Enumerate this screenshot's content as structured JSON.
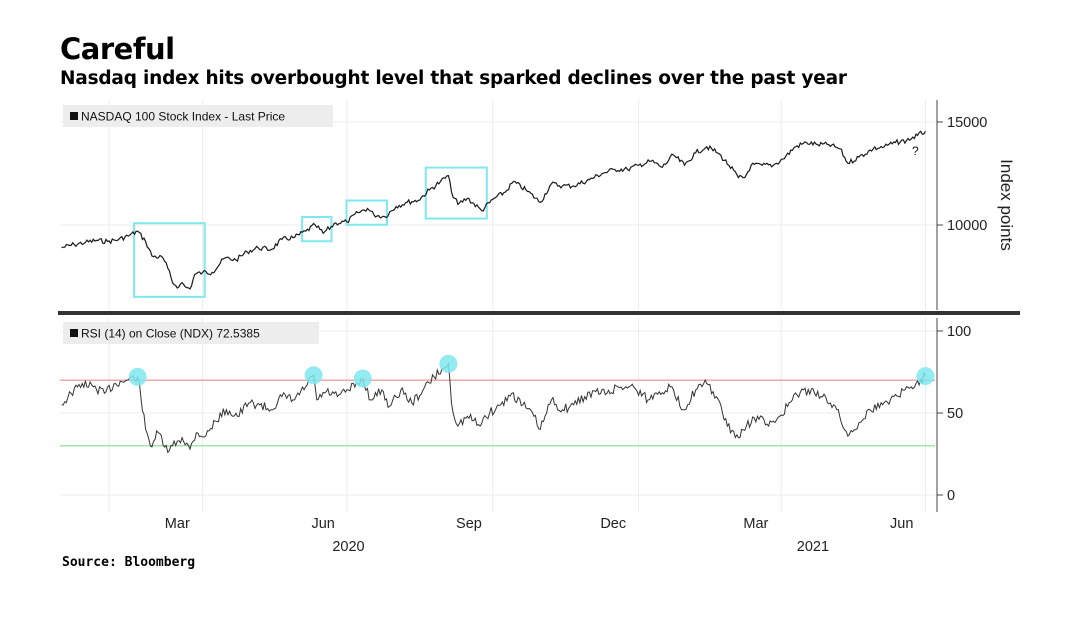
{
  "header": {
    "title": "Careful",
    "subtitle": "Nasdaq index hits overbought level that sparked declines over the past year"
  },
  "footer": {
    "source": "Source: Bloomberg"
  },
  "colors": {
    "background": "#ffffff",
    "price_line": "#1a1a1a",
    "rsi_line": "#333333",
    "overbought_line": "#f2a7a7",
    "oversold_line": "#a6e3a6",
    "highlight": "#7fe8ee",
    "divider": "#333333"
  },
  "chart_data": [
    {
      "type": "line",
      "panel": "price",
      "legend": "NASDAQ 100 Stock Index - Last Price",
      "ylabel": "Index points",
      "ylim": [
        7000,
        16000
      ],
      "yticks": [
        10000,
        15000
      ],
      "x_month_ticks": [
        "Mar",
        "Jun",
        "Sep",
        "Dec",
        "Mar",
        "Jun"
      ],
      "x_year_labels": [
        "2020",
        "2021"
      ],
      "annotation": "?",
      "series": [
        {
          "points": [
            [
              "2020-01-02",
              8900
            ],
            [
              "2020-01-10",
              9050
            ],
            [
              "2020-01-17",
              9150
            ],
            [
              "2020-01-24",
              9250
            ],
            [
              "2020-01-31",
              9200
            ],
            [
              "2020-02-07",
              9300
            ],
            [
              "2020-02-14",
              9500
            ],
            [
              "2020-02-19",
              9700
            ],
            [
              "2020-02-24",
              9200
            ],
            [
              "2020-02-28",
              8500
            ],
            [
              "2020-03-06",
              8400
            ],
            [
              "2020-03-09",
              7900
            ],
            [
              "2020-03-12",
              7200
            ],
            [
              "2020-03-16",
              7000
            ],
            [
              "2020-03-18",
              7200
            ],
            [
              "2020-03-20",
              7000
            ],
            [
              "2020-03-23",
              6900
            ],
            [
              "2020-03-26",
              7600
            ],
            [
              "2020-03-31",
              7700
            ],
            [
              "2020-04-06",
              7700
            ],
            [
              "2020-04-14",
              8400
            ],
            [
              "2020-04-21",
              8300
            ],
            [
              "2020-04-28",
              8700
            ],
            [
              "2020-05-05",
              8900
            ],
            [
              "2020-05-13",
              8800
            ],
            [
              "2020-05-20",
              9300
            ],
            [
              "2020-05-28",
              9400
            ],
            [
              "2020-06-04",
              9700
            ],
            [
              "2020-06-10",
              10000
            ],
            [
              "2020-06-15",
              9600
            ],
            [
              "2020-06-23",
              10100
            ],
            [
              "2020-06-30",
              10150
            ],
            [
              "2020-07-07",
              10600
            ],
            [
              "2020-07-13",
              10800
            ],
            [
              "2020-07-17",
              10500
            ],
            [
              "2020-07-24",
              10400
            ],
            [
              "2020-07-31",
              10900
            ],
            [
              "2020-08-07",
              11100
            ],
            [
              "2020-08-14",
              11200
            ],
            [
              "2020-08-21",
              11700
            ],
            [
              "2020-08-28",
              12100
            ],
            [
              "2020-09-02",
              12400
            ],
            [
              "2020-09-04",
              11600
            ],
            [
              "2020-09-08",
              11000
            ],
            [
              "2020-09-14",
              11300
            ],
            [
              "2020-09-23",
              10700
            ],
            [
              "2020-10-01",
              11300
            ],
            [
              "2020-10-08",
              11600
            ],
            [
              "2020-10-13",
              12100
            ],
            [
              "2020-10-21",
              11700
            ],
            [
              "2020-10-30",
              11100
            ],
            [
              "2020-11-06",
              12000
            ],
            [
              "2020-11-13",
              11900
            ],
            [
              "2020-11-20",
              11900
            ],
            [
              "2020-11-30",
              12200
            ],
            [
              "2020-12-08",
              12500
            ],
            [
              "2020-12-16",
              12700
            ],
            [
              "2020-12-24",
              12700
            ],
            [
              "2020-12-31",
              12900
            ],
            [
              "2021-01-08",
              13100
            ],
            [
              "2021-01-15",
              12800
            ],
            [
              "2021-01-22",
              13400
            ],
            [
              "2021-01-29",
              12900
            ],
            [
              "2021-02-05",
              13500
            ],
            [
              "2021-02-12",
              13800
            ],
            [
              "2021-02-19",
              13500
            ],
            [
              "2021-02-26",
              12900
            ],
            [
              "2021-03-04",
              12300
            ],
            [
              "2021-03-08",
              12300
            ],
            [
              "2021-03-12",
              12900
            ],
            [
              "2021-03-19",
              12900
            ],
            [
              "2021-03-26",
              12900
            ],
            [
              "2021-04-01",
              13200
            ],
            [
              "2021-04-09",
              13800
            ],
            [
              "2021-04-16",
              14000
            ],
            [
              "2021-04-23",
              13900
            ],
            [
              "2021-04-30",
              13900
            ],
            [
              "2021-05-07",
              13700
            ],
            [
              "2021-05-12",
              13000
            ],
            [
              "2021-05-19",
              13300
            ],
            [
              "2021-05-28",
              13700
            ],
            [
              "2021-06-04",
              13800
            ],
            [
              "2021-06-11",
              14000
            ],
            [
              "2021-06-18",
              14100
            ],
            [
              "2021-06-25",
              14350
            ],
            [
              "2021-06-30",
              14550
            ]
          ]
        }
      ],
      "highlight_windows": [
        [
          "2020-02-18",
          "2020-03-31"
        ],
        [
          "2020-06-03",
          "2020-06-19"
        ],
        [
          "2020-07-01",
          "2020-07-24"
        ],
        [
          "2020-08-20",
          "2020-09-25"
        ]
      ]
    },
    {
      "type": "line",
      "panel": "rsi",
      "legend": "RSI (14)  on Close (NDX) 72.5385",
      "ylim": [
        0,
        100
      ],
      "yticks": [
        0,
        50,
        100
      ],
      "reference_lines": [
        {
          "value": 70,
          "color": "#f2a7a7"
        },
        {
          "value": 30,
          "color": "#a6e3a6"
        }
      ],
      "series": [
        {
          "points": [
            [
              "2020-01-02",
              55
            ],
            [
              "2020-01-08",
              62
            ],
            [
              "2020-01-15",
              68
            ],
            [
              "2020-01-22",
              66
            ],
            [
              "2020-01-29",
              62
            ],
            [
              "2020-02-05",
              68
            ],
            [
              "2020-02-12",
              70
            ],
            [
              "2020-02-19",
              72
            ],
            [
              "2020-02-21",
              60
            ],
            [
              "2020-02-24",
              40
            ],
            [
              "2020-02-27",
              30
            ],
            [
              "2020-03-03",
              38
            ],
            [
              "2020-03-09",
              26
            ],
            [
              "2020-03-12",
              30
            ],
            [
              "2020-03-18",
              35
            ],
            [
              "2020-03-23",
              28
            ],
            [
              "2020-03-27",
              38
            ],
            [
              "2020-04-02",
              36
            ],
            [
              "2020-04-08",
              45
            ],
            [
              "2020-04-15",
              52
            ],
            [
              "2020-04-22",
              48
            ],
            [
              "2020-04-29",
              56
            ],
            [
              "2020-05-06",
              55
            ],
            [
              "2020-05-13",
              52
            ],
            [
              "2020-05-20",
              60
            ],
            [
              "2020-05-28",
              58
            ],
            [
              "2020-06-04",
              66
            ],
            [
              "2020-06-09",
              73
            ],
            [
              "2020-06-11",
              58
            ],
            [
              "2020-06-17",
              63
            ],
            [
              "2020-06-24",
              60
            ],
            [
              "2020-07-01",
              64
            ],
            [
              "2020-07-07",
              68
            ],
            [
              "2020-07-10",
              71
            ],
            [
              "2020-07-15",
              58
            ],
            [
              "2020-07-22",
              64
            ],
            [
              "2020-07-27",
              54
            ],
            [
              "2020-08-03",
              64
            ],
            [
              "2020-08-10",
              56
            ],
            [
              "2020-08-17",
              64
            ],
            [
              "2020-08-24",
              72
            ],
            [
              "2020-08-31",
              78
            ],
            [
              "2020-09-02",
              80
            ],
            [
              "2020-09-04",
              56
            ],
            [
              "2020-09-08",
              42
            ],
            [
              "2020-09-14",
              48
            ],
            [
              "2020-09-21",
              43
            ],
            [
              "2020-09-28",
              50
            ],
            [
              "2020-10-05",
              55
            ],
            [
              "2020-10-12",
              62
            ],
            [
              "2020-10-19",
              55
            ],
            [
              "2020-10-26",
              48
            ],
            [
              "2020-10-30",
              40
            ],
            [
              "2020-11-06",
              58
            ],
            [
              "2020-11-13",
              52
            ],
            [
              "2020-11-20",
              55
            ],
            [
              "2020-11-27",
              60
            ],
            [
              "2020-12-04",
              63
            ],
            [
              "2020-12-11",
              62
            ],
            [
              "2020-12-18",
              66
            ],
            [
              "2020-12-28",
              66
            ],
            [
              "2021-01-06",
              58
            ],
            [
              "2021-01-13",
              63
            ],
            [
              "2021-01-20",
              66
            ],
            [
              "2021-01-28",
              52
            ],
            [
              "2021-02-05",
              64
            ],
            [
              "2021-02-12",
              68
            ],
            [
              "2021-02-18",
              60
            ],
            [
              "2021-02-25",
              42
            ],
            [
              "2021-03-04",
              35
            ],
            [
              "2021-03-09",
              42
            ],
            [
              "2021-03-16",
              48
            ],
            [
              "2021-03-23",
              42
            ],
            [
              "2021-03-30",
              48
            ],
            [
              "2021-04-07",
              58
            ],
            [
              "2021-04-14",
              64
            ],
            [
              "2021-04-21",
              62
            ],
            [
              "2021-04-28",
              60
            ],
            [
              "2021-05-05",
              52
            ],
            [
              "2021-05-12",
              36
            ],
            [
              "2021-05-19",
              44
            ],
            [
              "2021-05-26",
              52
            ],
            [
              "2021-06-03",
              55
            ],
            [
              "2021-06-10",
              60
            ],
            [
              "2021-06-17",
              64
            ],
            [
              "2021-06-24",
              68
            ],
            [
              "2021-06-30",
              72.5
            ]
          ]
        }
      ],
      "highlight_points": [
        [
          "2020-02-19",
          72
        ],
        [
          "2020-06-09",
          73
        ],
        [
          "2020-07-10",
          71
        ],
        [
          "2020-09-02",
          80
        ],
        [
          "2021-06-30",
          72.5
        ]
      ]
    }
  ]
}
